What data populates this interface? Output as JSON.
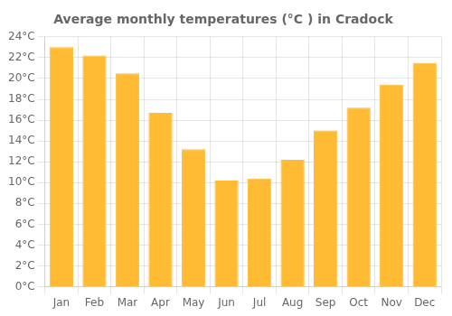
{
  "chart_data": {
    "type": "bar",
    "title": "Average monthly temperatures (°C ) in Cradock",
    "categories": [
      "Jan",
      "Feb",
      "Mar",
      "Apr",
      "May",
      "Jun",
      "Jul",
      "Aug",
      "Sep",
      "Oct",
      "Nov",
      "Dec"
    ],
    "values": [
      23.0,
      22.2,
      20.5,
      16.7,
      13.2,
      10.2,
      10.4,
      12.2,
      15.0,
      17.2,
      19.4,
      21.5
    ],
    "color": "#FFBB33",
    "ylim": [
      0,
      24
    ],
    "yticks": [
      {
        "value": 0,
        "label": "0°C"
      },
      {
        "value": 2,
        "label": "2°C"
      },
      {
        "value": 4,
        "label": "4°C"
      },
      {
        "value": 6,
        "label": "6°C"
      },
      {
        "value": 8,
        "label": "8°C"
      },
      {
        "value": 10,
        "label": "10°C"
      },
      {
        "value": 12,
        "label": "12°C"
      },
      {
        "value": 14,
        "label": "14°C"
      },
      {
        "value": 16,
        "label": "16°C"
      },
      {
        "value": 18,
        "label": "18°C"
      },
      {
        "value": 20,
        "label": "20°C"
      },
      {
        "value": 22,
        "label": "22°C"
      },
      {
        "value": 24,
        "label": "24°C"
      }
    ],
    "grid": true
  }
}
